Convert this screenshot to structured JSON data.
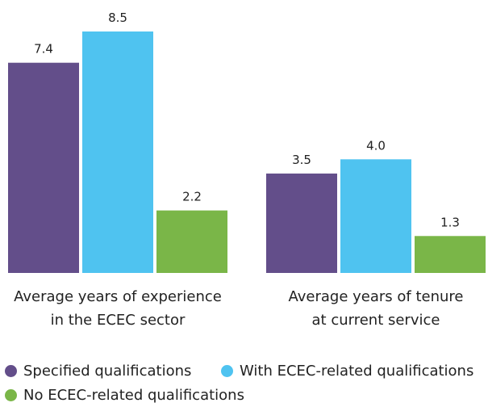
{
  "chart_data": {
    "type": "bar",
    "categories": [
      "Average years of experience\nin the ECEC sector",
      "Average years of tenure\nat current service"
    ],
    "series": [
      {
        "name": "Specified qualifications",
        "color": "#634e8a",
        "values": [
          7.4,
          3.5
        ]
      },
      {
        "name": "With ECEC-related qualifications",
        "color": "#4fc3f0",
        "values": [
          8.5,
          4.0
        ],
        "value_labels": [
          "8.5",
          "4.0"
        ]
      },
      {
        "name": "No ECEC-related qualifications",
        "color": "#7ab648",
        "values": [
          2.2,
          1.3
        ]
      }
    ]
  }
}
